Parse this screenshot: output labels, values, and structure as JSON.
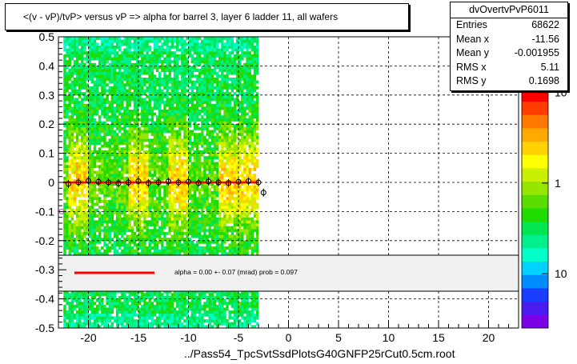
{
  "chart_data": {
    "type": "heatmap",
    "title": "<(v - vP)/tvP> versus   vP => alpha for barrel 3, layer 6 ladder 11, all wafers",
    "xlabel": "../Pass54_TpcSvtSsdPlotsG40GNFP25rCut0.5cm.root",
    "ylabel": "",
    "xlim": [
      -23,
      23
    ],
    "ylim": [
      -0.5,
      0.5
    ],
    "x_ticks": [
      "-20",
      "-15",
      "-10",
      "-5",
      "0",
      "5",
      "10",
      "15",
      "20"
    ],
    "x_tick_values": [
      -20,
      -15,
      -10,
      -5,
      0,
      5,
      10,
      15,
      20
    ],
    "y_ticks": [
      "0.5",
      "0.4",
      "0.3",
      "0.2",
      "0.1",
      "0",
      "-0.1",
      "-0.2",
      "-0.3",
      "-0.4",
      "-0.5"
    ],
    "y_tick_values": [
      0.5,
      0.4,
      0.3,
      0.2,
      0.1,
      0,
      -0.1,
      -0.2,
      -0.3,
      -0.4,
      -0.5
    ],
    "z_scale": "log",
    "z_ticks": [
      "10",
      "1",
      "10"
    ],
    "z_tick_values": [
      10,
      1,
      0.1
    ],
    "grid": true,
    "data_x_range": [
      -22.5,
      -3
    ],
    "high_density_bands": [
      [
        -22,
        -20
      ],
      [
        -16,
        -14
      ],
      [
        -12,
        -10
      ],
      [
        -7,
        -3
      ]
    ],
    "profile_x": [
      -22,
      -21,
      -20,
      -19,
      -18,
      -17,
      -16,
      -15,
      -14,
      -13,
      -12,
      -11,
      -10,
      -9,
      -8,
      -7,
      -6,
      -5,
      -4,
      -3,
      -2.5
    ],
    "profile_y": [
      -0.005,
      0,
      0.005,
      0.002,
      0,
      -0.003,
      0,
      0.004,
      -0.002,
      0,
      0.003,
      0,
      0.002,
      -0.002,
      0.003,
      0,
      -0.002,
      0.002,
      0.004,
      0,
      -0.035
    ],
    "outlier_points": [
      {
        "x": -23,
        "y": -0.1
      }
    ],
    "fit_line": {
      "y": 0.0
    }
  },
  "stats": {
    "name": "dvOvertvPvP6011",
    "rows": [
      {
        "key": "Entries",
        "value": "68622"
      },
      {
        "key": "Mean x",
        "value": "-11.56"
      },
      {
        "key": "Mean y",
        "value": "-0.001955"
      },
      {
        "key": "RMS x",
        "value": "5.11"
      },
      {
        "key": "RMS y",
        "value": "0.1698"
      }
    ]
  },
  "fit": {
    "text": "alpha =     0.00 +-  0.07 (mrad) prob = 0.097",
    "color": "#ff0000"
  },
  "colors": {
    "palette": [
      "#7a00e6",
      "#4b1cf0",
      "#1a3cff",
      "#008cff",
      "#00d2ff",
      "#00ffc8",
      "#00f08c",
      "#00e650",
      "#1edc00",
      "#5adc00",
      "#96e600",
      "#c8f000",
      "#ffff00",
      "#ffd200",
      "#ffaa00",
      "#ff7800",
      "#ff3c00",
      "#ff0000"
    ]
  }
}
